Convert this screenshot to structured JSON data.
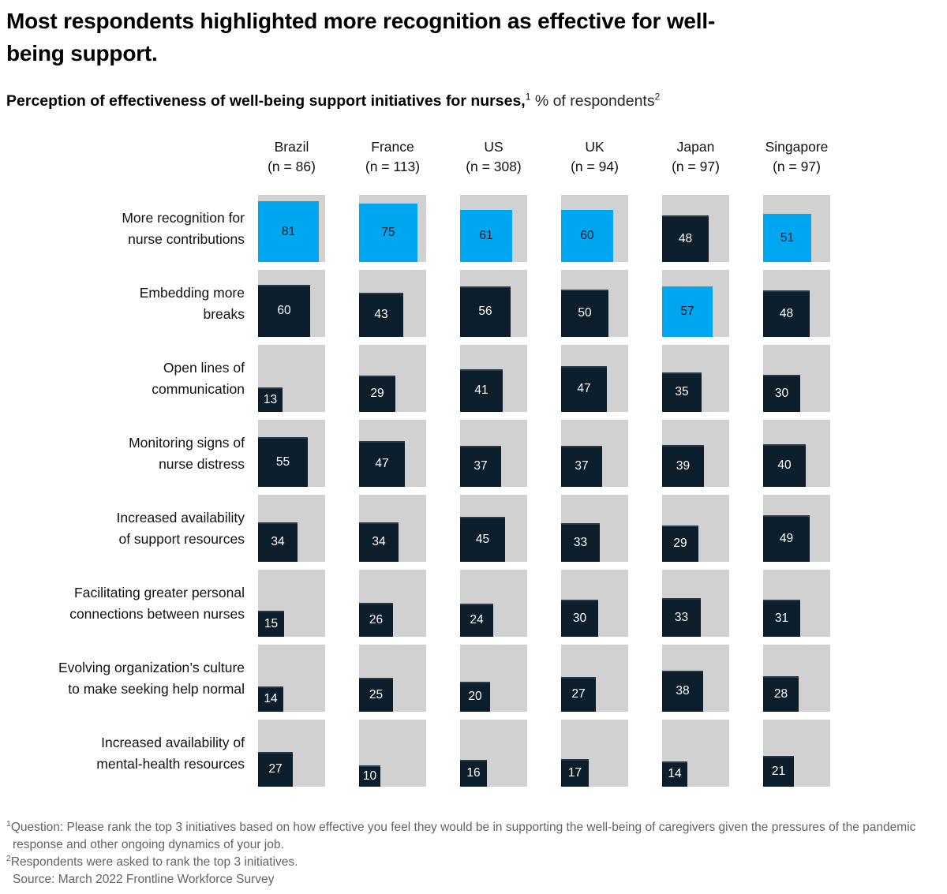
{
  "title": {
    "line1": "Most respondents highlighted more recognition as effective for well-",
    "line2": "being support."
  },
  "subtitle": {
    "bold": "Perception of effectiveness of well-being support initiatives for nurses,",
    "sup1": "1",
    "normal": " % of respondents",
    "sup2": "2"
  },
  "chart_data": {
    "type": "heatmap",
    "encoding": "square area proportional to value; blue square = highest-ranked initiative within each country column",
    "value_unit": "% of respondents",
    "legend_position": "none",
    "columns": [
      {
        "name": "Brazil",
        "n": "(n = 86)"
      },
      {
        "name": "France",
        "n": "(n = 113)"
      },
      {
        "name": "US",
        "n": "(n = 308)"
      },
      {
        "name": "UK",
        "n": "(n = 94)"
      },
      {
        "name": "Japan",
        "n": "(n = 97)"
      },
      {
        "name": "Singapore",
        "n": "(n = 97)"
      }
    ],
    "rows": [
      {
        "label": "More recognition for nurse contributions",
        "label_lines": [
          "More recognition for",
          "nurse contributions"
        ],
        "values": [
          81,
          75,
          61,
          60,
          48,
          51
        ],
        "highlight": [
          true,
          true,
          true,
          true,
          false,
          true
        ]
      },
      {
        "label": "Embedding more breaks",
        "label_lines": [
          "Embedding more",
          "breaks"
        ],
        "values": [
          60,
          43,
          56,
          50,
          57,
          48
        ],
        "highlight": [
          false,
          false,
          false,
          false,
          true,
          false
        ]
      },
      {
        "label": "Open lines of communication",
        "label_lines": [
          "Open lines of",
          "communication"
        ],
        "values": [
          13,
          29,
          41,
          47,
          35,
          30
        ],
        "highlight": [
          false,
          false,
          false,
          false,
          false,
          false
        ]
      },
      {
        "label": "Monitoring signs of nurse distress",
        "label_lines": [
          "Monitoring signs of",
          "nurse distress"
        ],
        "values": [
          55,
          47,
          37,
          37,
          39,
          40
        ],
        "highlight": [
          false,
          false,
          false,
          false,
          false,
          false
        ]
      },
      {
        "label": "Increased availability of support resources",
        "label_lines": [
          "Increased availability",
          "of support resources"
        ],
        "values": [
          34,
          34,
          45,
          33,
          29,
          49
        ],
        "highlight": [
          false,
          false,
          false,
          false,
          false,
          false
        ]
      },
      {
        "label": "Facilitating greater personal connections between nurses",
        "label_lines": [
          "Facilitating greater personal",
          "connections between nurses"
        ],
        "values": [
          15,
          26,
          24,
          30,
          33,
          31
        ],
        "highlight": [
          false,
          false,
          false,
          false,
          false,
          false
        ]
      },
      {
        "label": "Evolving organization’s culture to make seeking help normal",
        "label_lines": [
          "Evolving organization’s culture",
          "to make seeking help normal"
        ],
        "values": [
          14,
          25,
          20,
          27,
          38,
          28
        ],
        "highlight": [
          false,
          false,
          false,
          false,
          false,
          false
        ]
      },
      {
        "label": "Increased availability of mental-health resources",
        "label_lines": [
          "Increased availability of",
          "mental-health resources"
        ],
        "values": [
          27,
          10,
          16,
          17,
          14,
          21
        ],
        "highlight": [
          false,
          false,
          false,
          false,
          false,
          false
        ]
      }
    ]
  },
  "footnotes": [
    {
      "sup": "1",
      "text": "Question: Please rank the top 3 initiatives based on how effective you feel they would be in supporting the well-being of caregivers given the pressures of the pandemic response and other ongoing dynamics of your job."
    },
    {
      "sup": "2",
      "text": "Respondents were asked to rank the top 3 initiatives."
    },
    {
      "sup": "",
      "text": "Source: March 2022 Frontline Workforce Survey"
    }
  ],
  "colors": {
    "highlight_blue": "#00a6f0",
    "base_navy": "#0c1e2c",
    "track_gray": "#d1d1d1",
    "footnote_gray": "#636363",
    "text_black": "#000000"
  }
}
